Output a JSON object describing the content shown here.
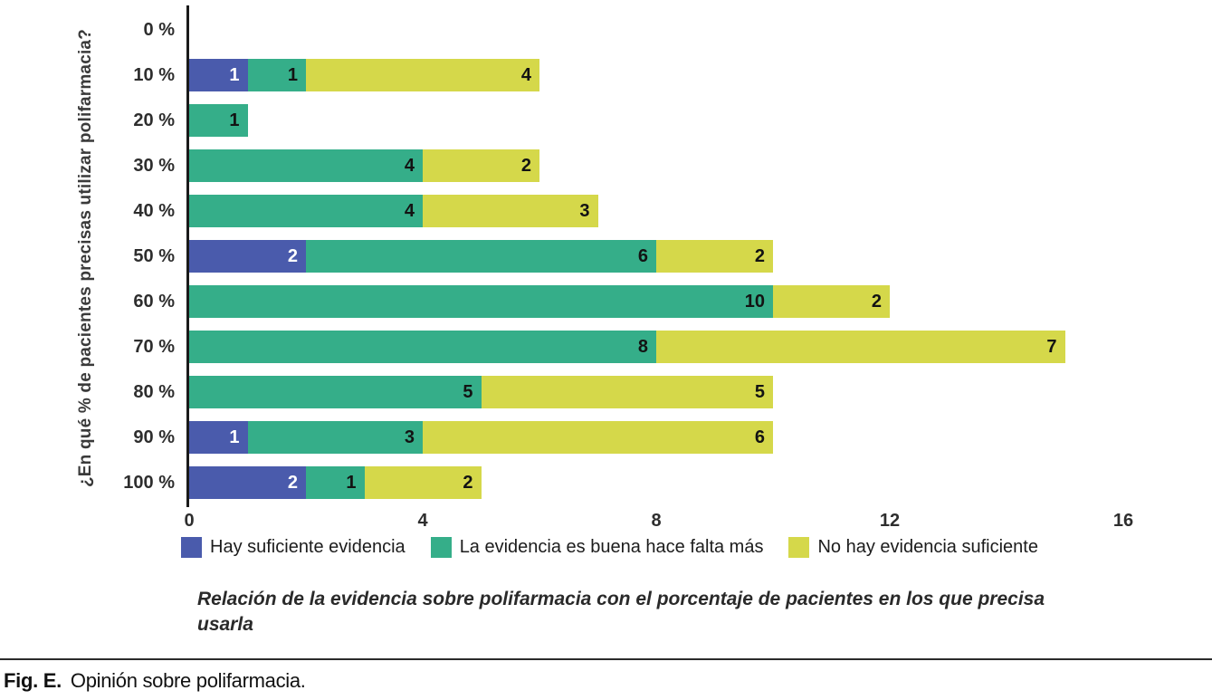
{
  "figure": {
    "caption_prefix": "Fig. E.",
    "caption_text": "Opinión sobre polifarmacia."
  },
  "chart_data": {
    "type": "bar",
    "orientation": "horizontal",
    "stacked": true,
    "title": "",
    "subtitle": "Relación de la evidencia sobre polifarmacia con el porcentaje de pacientes en los que precisa usarla",
    "ylabel": "¿En qué % de pacientes precisas utilizar polifarmacia?",
    "xlabel": "",
    "categories": [
      "0 %",
      "10 %",
      "20 %",
      "30 %",
      "40 %",
      "50 %",
      "60 %",
      "70 %",
      "80 %",
      "90 %",
      "100 %"
    ],
    "xlim": [
      0,
      16
    ],
    "x_ticks": [
      0,
      4,
      8,
      12,
      16
    ],
    "grid": false,
    "legend_position": "bottom",
    "series": [
      {
        "name": "Hay suficiente evidencia",
        "color": "#4a5bac",
        "label_color": "#ffffff",
        "values": [
          0,
          1,
          0,
          0,
          0,
          2,
          0,
          0,
          0,
          1,
          2
        ]
      },
      {
        "name": "La evidencia es buena hace falta más",
        "color": "#35ae89",
        "label_color": "#131313",
        "values": [
          0,
          1,
          1,
          4,
          4,
          6,
          10,
          8,
          5,
          3,
          1
        ]
      },
      {
        "name": "No hay evidencia suficiente",
        "color": "#d5d84a",
        "label_color": "#131313",
        "values": [
          0,
          4,
          0,
          2,
          3,
          2,
          2,
          7,
          5,
          6,
          2
        ]
      }
    ]
  }
}
